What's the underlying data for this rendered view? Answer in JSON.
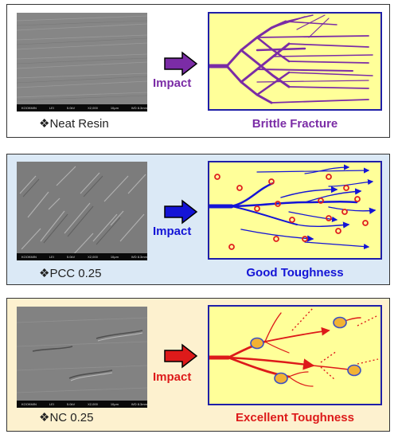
{
  "panels": [
    {
      "id": "neat-resin",
      "caption_bullet": "❖",
      "caption": "Neat Resin",
      "impact_label": "Impact",
      "result": "Brittle Fracture",
      "accent_color": "#7b2ca6",
      "panel_bg": "#ffffff",
      "sem_info": [
        "KOOKMIN",
        "LEI",
        "5.0kV",
        "X2,000",
        "10μm",
        "WD 8.3mm"
      ]
    },
    {
      "id": "pcc-025",
      "caption_bullet": "❖",
      "caption": "PCC 0.25",
      "impact_label": "Impact",
      "result": "Good Toughness",
      "accent_color": "#1414d6",
      "panel_bg": "#dbe9f6",
      "sem_info": [
        "KOOKMIN",
        "LEI",
        "5.0kV",
        "X2,000",
        "10μm",
        "WD 8.3mm"
      ]
    },
    {
      "id": "nc-025",
      "caption_bullet": "❖",
      "caption": "NC 0.25",
      "impact_label": "Impact",
      "result": "Excellent Toughness",
      "accent_color": "#dd1a1a",
      "panel_bg": "#fdf1cf",
      "sem_info": [
        "KOOKMIN",
        "LEI",
        "5.0kV",
        "X2,000",
        "10μm",
        "WD 8.3mm"
      ]
    }
  ],
  "colors": {
    "diagram_fill": "#ffff99",
    "diagram_border": "#1f1fa8",
    "particle": "#e02020",
    "nanoparticle_fill": "#f2b233",
    "nanoparticle_shell": "#3a4fc4"
  }
}
